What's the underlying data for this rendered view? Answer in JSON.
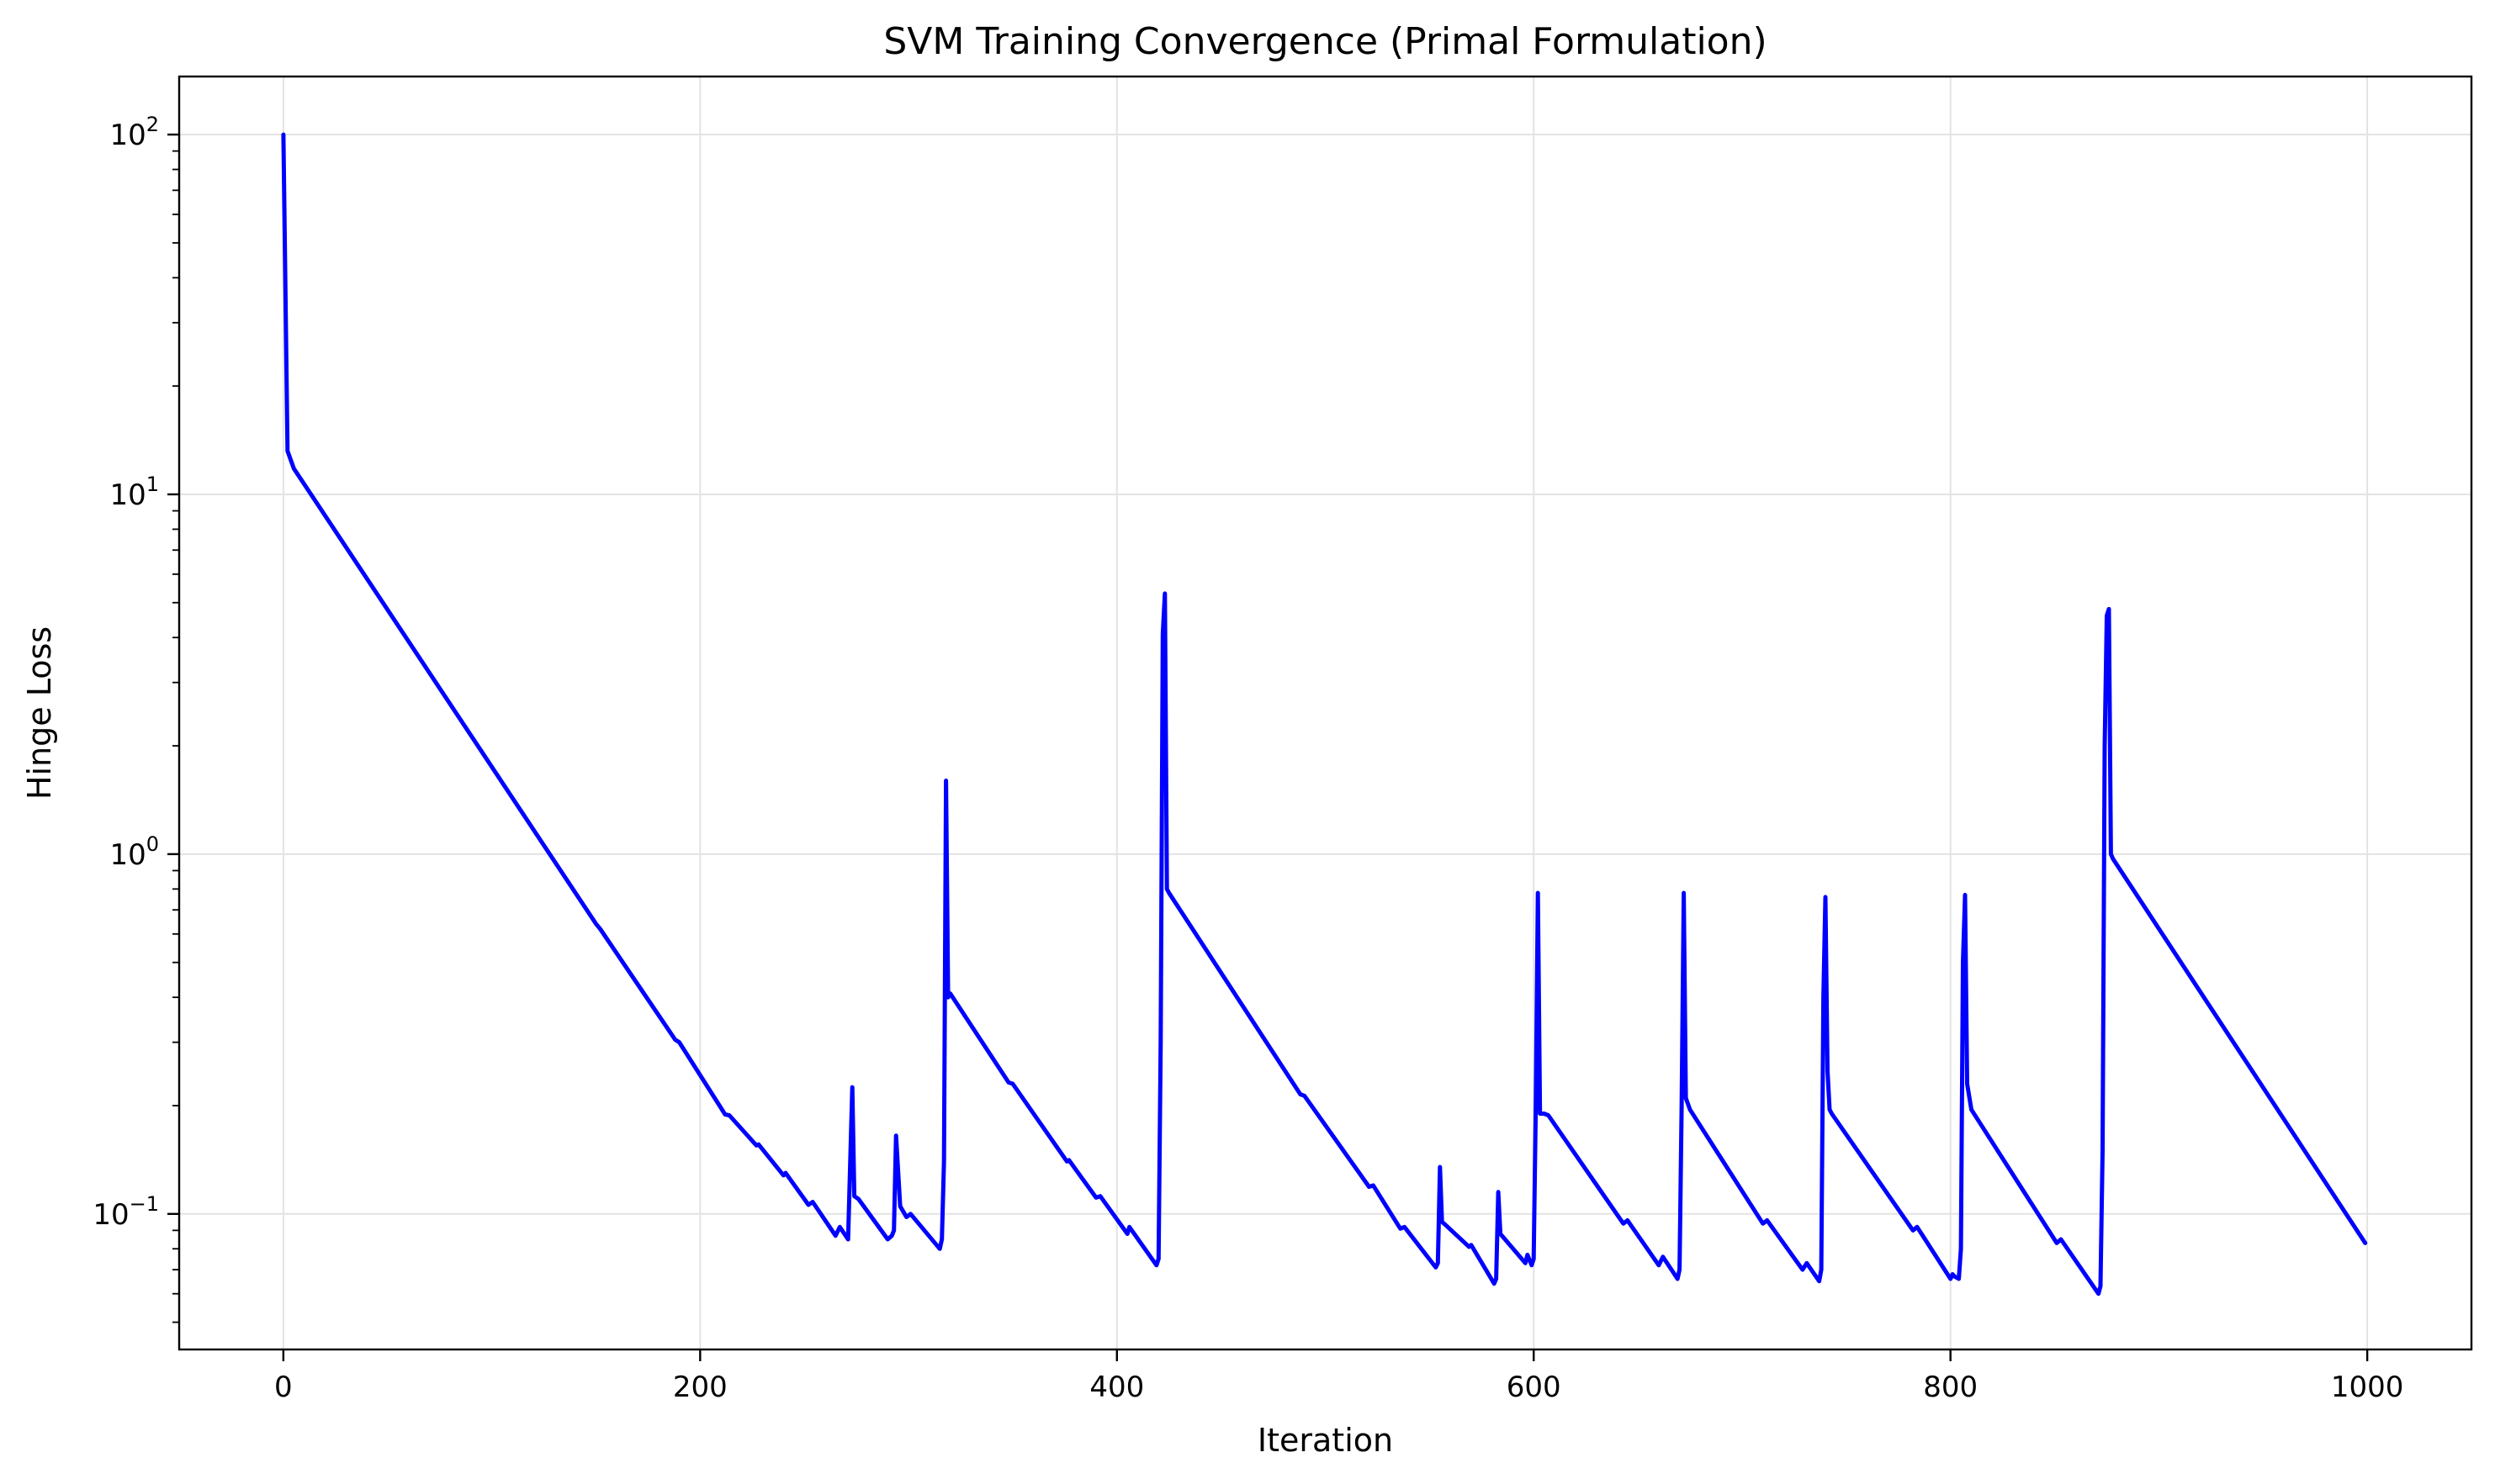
{
  "chart_data": {
    "type": "line",
    "title": "SVM Training Convergence (Primal Formulation)",
    "xlabel": "Iteration",
    "ylabel": "Hinge Loss",
    "xlim": [
      -50,
      1050
    ],
    "ylim": [
      0.042,
      145
    ],
    "yscale": "log",
    "grid": true,
    "xticks": [
      0,
      200,
      400,
      600,
      800,
      1000
    ],
    "yticks": [
      {
        "value": 0.1,
        "base": "10",
        "exp": "−1"
      },
      {
        "value": 1,
        "base": "10",
        "exp": "0"
      },
      {
        "value": 10,
        "base": "10",
        "exp": "1"
      },
      {
        "value": 100,
        "base": "10",
        "exp": "2"
      }
    ],
    "series": [
      {
        "color": "#0000ff",
        "x": [
          0,
          2,
          5,
          150,
          152,
          188,
          190,
          212,
          214,
          227,
          228,
          240,
          241,
          252,
          254,
          265,
          267,
          271,
          273,
          274,
          276,
          290,
          292,
          293,
          294,
          296,
          299,
          301,
          315,
          316,
          317,
          318,
          319,
          320,
          348,
          350,
          376,
          377,
          390,
          392,
          405,
          406,
          419,
          420,
          421,
          422,
          423,
          424,
          425,
          488,
          490,
          521,
          523,
          536,
          538,
          553,
          554,
          555,
          556,
          557,
          569,
          570,
          581,
          582,
          583,
          584,
          596,
          597,
          599,
          600,
          601,
          602,
          603,
          605,
          607,
          643,
          645,
          660,
          662,
          669,
          670,
          671,
          672,
          673,
          675,
          710,
          712,
          729,
          731,
          737,
          738,
          739,
          740,
          741,
          742,
          743,
          782,
          784,
          800,
          801,
          802,
          804,
          805,
          806,
          807,
          808,
          810,
          851,
          853,
          871,
          872,
          873,
          874,
          875,
          876,
          877,
          878,
          999
        ],
        "values": [
          100,
          13.2,
          11.8,
          0.64,
          0.62,
          0.305,
          0.3,
          0.189,
          0.188,
          0.155,
          0.156,
          0.128,
          0.13,
          0.106,
          0.108,
          0.087,
          0.092,
          0.085,
          0.225,
          0.112,
          0.11,
          0.085,
          0.087,
          0.09,
          0.165,
          0.105,
          0.098,
          0.1,
          0.08,
          0.085,
          0.14,
          1.6,
          0.4,
          0.41,
          0.232,
          0.23,
          0.14,
          0.141,
          0.111,
          0.112,
          0.088,
          0.092,
          0.072,
          0.075,
          0.3,
          4.1,
          5.3,
          0.8,
          0.78,
          0.215,
          0.213,
          0.119,
          0.12,
          0.091,
          0.092,
          0.071,
          0.073,
          0.135,
          0.095,
          0.094,
          0.081,
          0.082,
          0.064,
          0.066,
          0.115,
          0.088,
          0.073,
          0.077,
          0.072,
          0.075,
          0.2,
          0.78,
          0.19,
          0.19,
          0.188,
          0.094,
          0.096,
          0.072,
          0.076,
          0.066,
          0.07,
          0.2,
          0.78,
          0.21,
          0.195,
          0.094,
          0.096,
          0.07,
          0.073,
          0.065,
          0.07,
          0.4,
          0.76,
          0.25,
          0.195,
          0.19,
          0.09,
          0.092,
          0.066,
          0.068,
          0.067,
          0.066,
          0.08,
          0.5,
          0.77,
          0.23,
          0.195,
          0.083,
          0.085,
          0.06,
          0.063,
          0.15,
          2.0,
          4.6,
          4.8,
          1.0,
          0.97,
          0.083
        ]
      }
    ]
  }
}
